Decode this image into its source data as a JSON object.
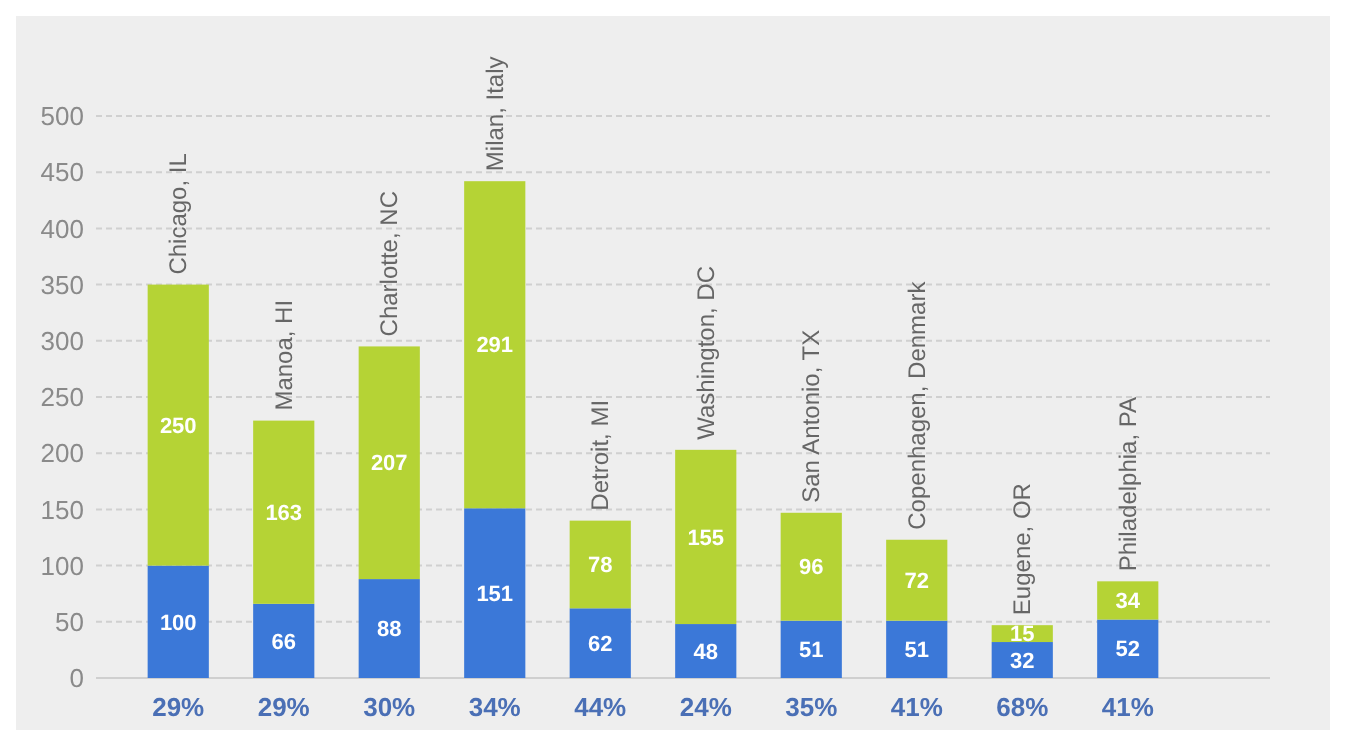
{
  "chart_data": {
    "type": "bar",
    "stacked": true,
    "categories": [
      "Chicago, IL",
      "Manoa, HI",
      "Charlotte, NC",
      "Milan, Italy",
      "Detroit, MI",
      "Washington, DC",
      "San Antonio, TX",
      "Copenhagen, Denmark",
      "Eugene, OR",
      "Philadelphia, PA"
    ],
    "series": [
      {
        "color": "#3b78d8",
        "values": [
          100,
          66,
          88,
          151,
          62,
          48,
          51,
          51,
          32,
          52
        ]
      },
      {
        "color": "#b5d335",
        "values": [
          250,
          163,
          207,
          291,
          78,
          155,
          96,
          72,
          15,
          34
        ]
      }
    ],
    "ylim": [
      0,
      500
    ],
    "yticks": [
      0,
      50,
      100,
      150,
      200,
      250,
      300,
      350,
      400,
      450,
      500
    ],
    "grid": "y",
    "data_labels": true,
    "annotations": [
      "29%",
      "29%",
      "30%",
      "34%",
      "44%",
      "24%",
      "35%",
      "41%",
      "68%",
      "41%"
    ]
  }
}
